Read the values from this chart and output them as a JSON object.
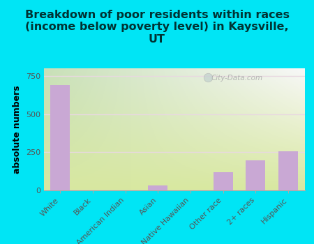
{
  "categories": [
    "White",
    "Black",
    "American Indian",
    "Asian",
    "Native Hawaiian",
    "Other race",
    "2+ races",
    "Hispanic"
  ],
  "values": [
    690,
    0,
    0,
    30,
    0,
    120,
    195,
    258
  ],
  "bar_color": "#c9a8d4",
  "title": "Breakdown of poor residents within races\n(income below poverty level) in Kaysville,\nUT",
  "ylabel": "absolute numbers",
  "ylim": [
    0,
    800
  ],
  "yticks": [
    0,
    250,
    500,
    750
  ],
  "background_outer": "#00e5f5",
  "background_inner_topleft": "#d8e8c0",
  "background_inner_topright": "#f0f8f0",
  "background_inner_bottom": "#f8f8e8",
  "grid_color": "#e8d8e0",
  "title_fontsize": 11.5,
  "title_color": "#003333",
  "ylabel_fontsize": 9,
  "tick_fontsize": 8,
  "watermark": "City-Data.com"
}
